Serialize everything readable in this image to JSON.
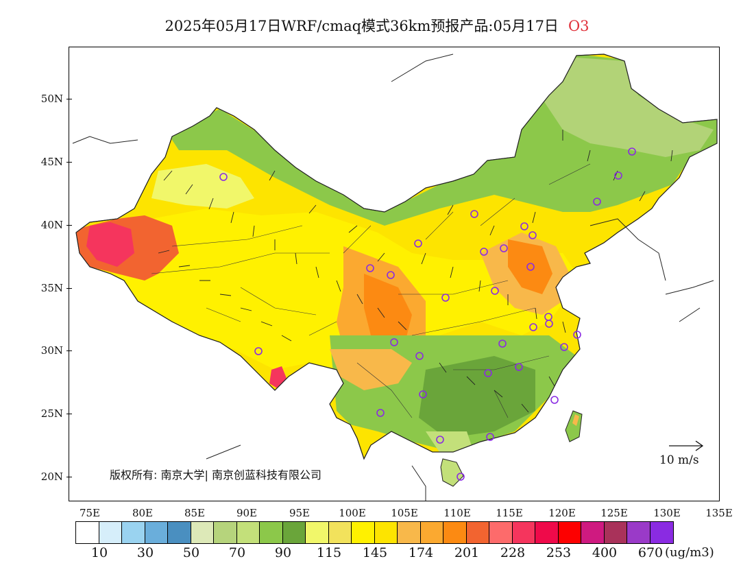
{
  "title": {
    "text": "2025年05月17日WRF/cmaq模式36km预报产品:05月17日",
    "species": "O3",
    "species_color": "#e0303a"
  },
  "map": {
    "lat_labels": [
      "50N",
      "45N",
      "40N",
      "35N",
      "30N",
      "25N",
      "20N"
    ],
    "lon_labels": [
      "75E",
      "80E",
      "85E",
      "90E",
      "95E",
      "100E",
      "105E",
      "110E",
      "115E",
      "120E",
      "125E",
      "130E",
      "135E"
    ],
    "copyright": "版权所有: 南京大学| 南京创蓝科技有限公司",
    "wind_reference": "10 m/s",
    "station_marker_color": "#8a2be2"
  },
  "colorbar": {
    "colors": [
      "#ffffff",
      "#d6eefa",
      "#9ad3f0",
      "#6aaedb",
      "#4a8fc0",
      "#dde9b8",
      "#b6d47c",
      "#c3e07a",
      "#8cc84a",
      "#6aa53a",
      "#f1f76a",
      "#f2e25c",
      "#fff100",
      "#fde400",
      "#f8b84a",
      "#fba930",
      "#fc8a12",
      "#f26430",
      "#fd6b6b",
      "#f5355d",
      "#ef0a4a",
      "#fd0000",
      "#cf1a80",
      "#a9325a",
      "#9a3ac8",
      "#8a2be2"
    ],
    "labels": [
      "10",
      "30",
      "50",
      "70",
      "90",
      "115",
      "145",
      "174",
      "201",
      "228",
      "253",
      "400",
      "670"
    ],
    "unit": "(ug/m3)"
  }
}
